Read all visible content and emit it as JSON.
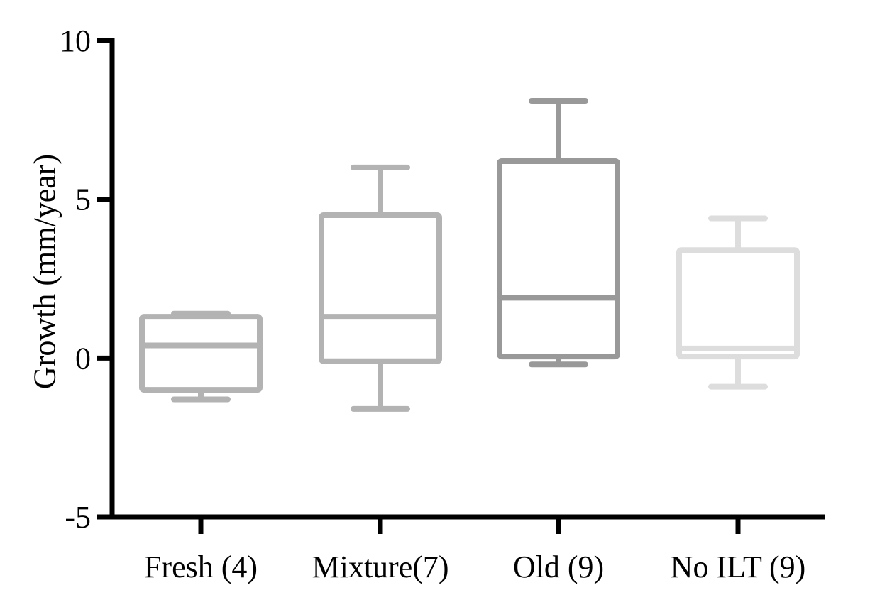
{
  "chart_data": {
    "type": "box",
    "ylabel": "Growth (mm/year)",
    "xlabel": "",
    "ylim": [
      -5,
      10
    ],
    "yticks": [
      -5,
      0,
      5,
      10
    ],
    "grid": false,
    "categories": [
      "Fresh (4)",
      "Mixture(7)",
      "Old (9)",
      "No ILT (9)"
    ],
    "boxes": [
      {
        "category": "Fresh (4)",
        "min": -1.3,
        "q1": -1.0,
        "median": 0.4,
        "q3": 1.3,
        "max": 1.4,
        "color": "#b3b3b3"
      },
      {
        "category": "Mixture(7)",
        "min": -1.6,
        "q1": -0.1,
        "median": 1.3,
        "q3": 4.5,
        "max": 6.0,
        "color": "#b3b3b3"
      },
      {
        "category": "Old (9)",
        "min": -0.2,
        "q1": 0.05,
        "median": 1.9,
        "q3": 6.2,
        "max": 8.1,
        "color": "#999999"
      },
      {
        "category": "No ILT (9)",
        "min": -0.9,
        "q1": 0.05,
        "median": 0.3,
        "q3": 3.4,
        "max": 4.4,
        "color": "#dddddd"
      }
    ]
  }
}
